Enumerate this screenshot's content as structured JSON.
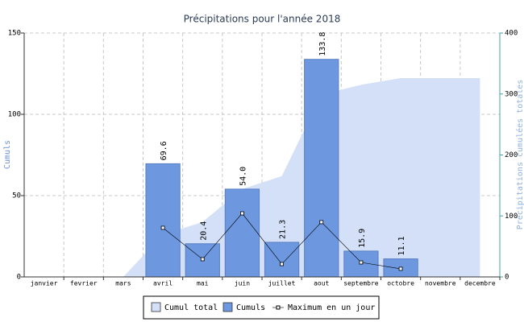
{
  "chart_data": {
    "type": "bar",
    "title": "Précipitations pour l'année 2018",
    "y_label": "Cumuls",
    "y2_label": "Précipitations cumulées totales",
    "categories": [
      "janvier",
      "fevrier",
      "mars",
      "avril",
      "mai",
      "juin",
      "juillet",
      "aout",
      "septembre",
      "octobre",
      "novembre",
      "decembre"
    ],
    "ylim": [
      0,
      150
    ],
    "yticks": [
      0,
      50,
      100,
      150
    ],
    "y2lim": [
      0,
      400
    ],
    "y2ticks": [
      0,
      100,
      200,
      300,
      400
    ],
    "grid": true,
    "legend": "bottom",
    "series": [
      {
        "name": "Cumul total",
        "type": "area",
        "axis": "y2",
        "color": "#d3e0f8",
        "values": [
          0,
          0,
          0,
          69.6,
          90,
          144,
          165.3,
          299.1,
          315,
          326.1,
          326.1,
          326.1
        ]
      },
      {
        "name": "Cumuls",
        "type": "bar",
        "color": "#6d97de",
        "values": [
          null,
          null,
          null,
          69.6,
          20.4,
          54.0,
          21.3,
          133.8,
          15.9,
          11.1,
          null,
          null
        ],
        "value_labels": [
          null,
          null,
          null,
          "69.6",
          "20.4",
          "54.0",
          "21.3",
          "133.8",
          "15.9",
          "11.1",
          null,
          null
        ]
      },
      {
        "name": "Maximum en un jour",
        "type": "line",
        "color": "#000000",
        "values": [
          null,
          null,
          null,
          30.2,
          10.9,
          39.1,
          7.9,
          33.7,
          8.9,
          5.0,
          null,
          null
        ]
      }
    ]
  }
}
